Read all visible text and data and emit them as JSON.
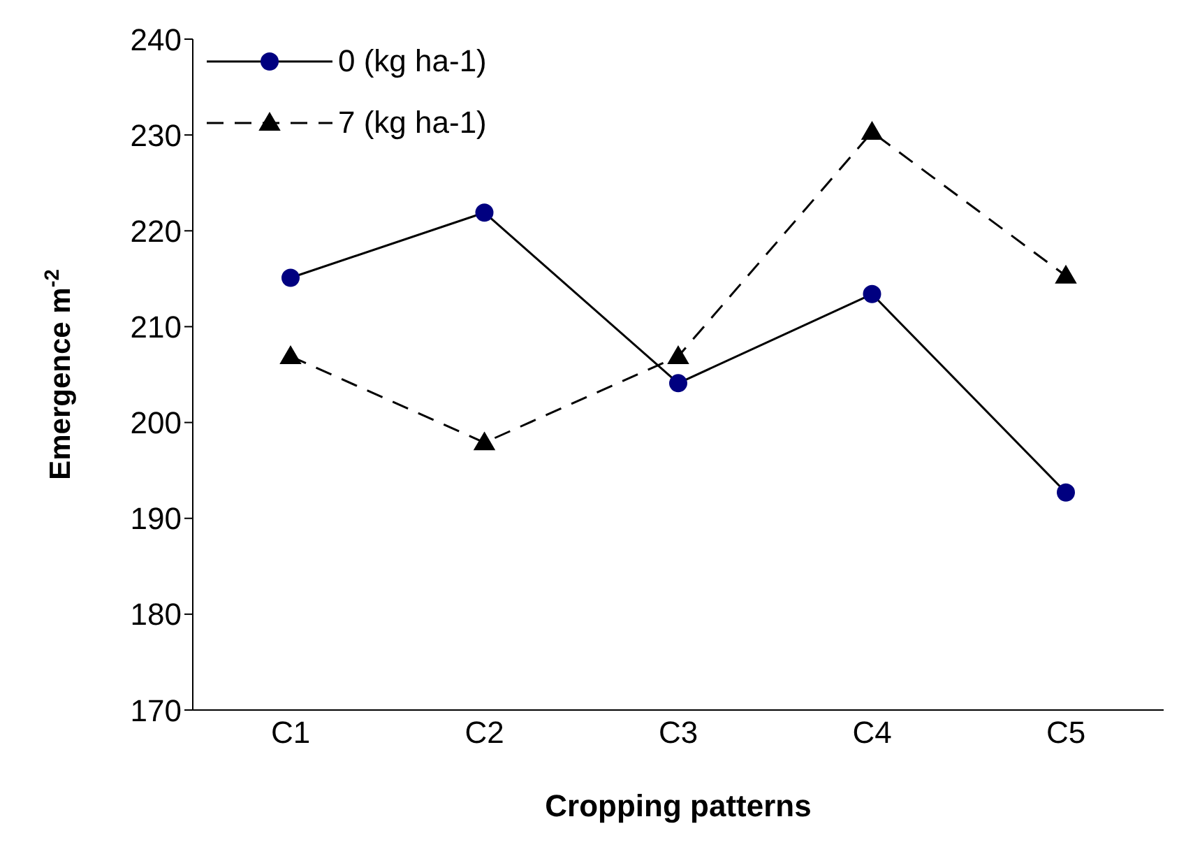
{
  "chart_data": {
    "type": "line",
    "xlabel": "Cropping patterns",
    "ylabel": "Emergence m$^{-2}$",
    "categories": [
      "C1",
      "C2",
      "C3",
      "C4",
      "C5"
    ],
    "series": [
      {
        "name": "0 (kg ha-1)",
        "color": "#000080",
        "marker": "circle",
        "line_style": "solid",
        "values": [
          215.1,
          221.9,
          204.1,
          213.4,
          192.7
        ]
      },
      {
        "name": "7 (kg ha-1)",
        "color": "#000000",
        "marker": "triangle",
        "line_style": "dashed",
        "values": [
          206.9,
          197.9,
          206.9,
          230.3,
          215.3
        ]
      }
    ],
    "ylim": [
      170,
      240
    ],
    "yticks": [
      170,
      180,
      190,
      200,
      210,
      220,
      230,
      240
    ],
    "grid": false,
    "legend": "top left"
  }
}
